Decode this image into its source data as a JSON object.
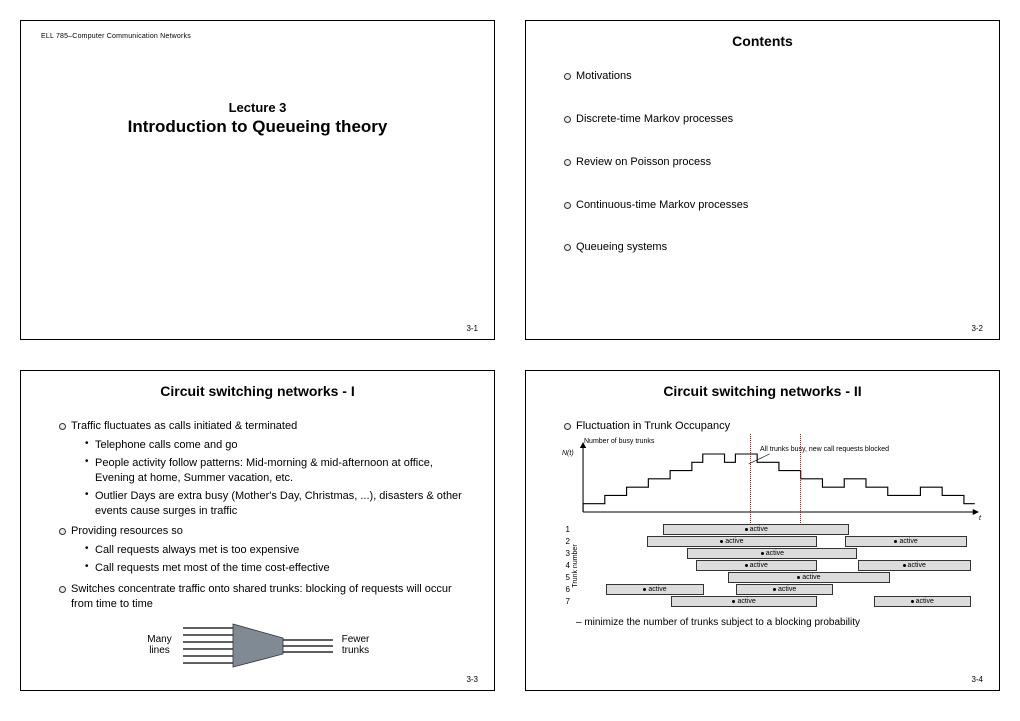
{
  "slide1": {
    "course": "ELL 785–Computer Communication Networks",
    "lecture": "Lecture 3",
    "title": "Introduction to Queueing theory",
    "pagenum": "3-1"
  },
  "slide2": {
    "title": "Contents",
    "items": [
      "Motivations",
      "Discrete-time Markov processes",
      "Review on Poisson process",
      "Continuous-time Markov processes",
      "Queueing systems"
    ],
    "pagenum": "3-2"
  },
  "slide3": {
    "title": "Circuit switching networks - I",
    "b1": "Traffic fluctuates as calls initiated & terminated",
    "s1a": "Telephone calls come and go",
    "s1b": "People activity follow patterns: Mid-morning & mid-afternoon at office, Evening at home, Summer vacation, etc.",
    "s1c": "Outlier Days are extra busy (Mother's Day, Christmas, ...), disasters & other events cause surges in traffic",
    "b2": "Providing resources so",
    "s2a": "Call requests always met is too expensive",
    "s2b": "Call requests met most of the time cost-effective",
    "b3": "Switches concentrate traffic onto shared trunks: blocking of requests will occur from time to time",
    "many": "Many lines",
    "fewer": "Fewer trunks",
    "pagenum": "3-3"
  },
  "slide4": {
    "title": "Circuit switching networks - II",
    "b1": "Fluctuation in Trunk Occupancy",
    "ylabel_busy": "Number of busy trunks",
    "nt": "N(t)",
    "block_note": "All trunks busy, new call requests blocked",
    "t_label": "t",
    "trunk_ylabel": "Trunk number",
    "chart_values": [
      1,
      1,
      2,
      2,
      3,
      3,
      4,
      4,
      5,
      5,
      6,
      7,
      7,
      6,
      7,
      7,
      6,
      6,
      5,
      5,
      4,
      4,
      3,
      3,
      4,
      4,
      3,
      3,
      2,
      2,
      2,
      3,
      3,
      2,
      2,
      1
    ],
    "trunks": [
      {
        "n": "1",
        "segs": [
          {
            "l": 22,
            "w": 46,
            "label": "active"
          }
        ]
      },
      {
        "n": "2",
        "segs": [
          {
            "l": 18,
            "w": 42,
            "label": "active"
          },
          {
            "l": 67,
            "w": 30,
            "label": "active"
          }
        ]
      },
      {
        "n": "3",
        "segs": [
          {
            "l": 28,
            "w": 42,
            "label": "active"
          }
        ]
      },
      {
        "n": "4",
        "segs": [
          {
            "l": 30,
            "w": 30,
            "label": "active"
          },
          {
            "l": 70,
            "w": 28,
            "label": "active"
          }
        ]
      },
      {
        "n": "5",
        "segs": [
          {
            "l": 38,
            "w": 40,
            "label": "active"
          }
        ]
      },
      {
        "n": "6",
        "segs": [
          {
            "l": 8,
            "w": 24,
            "label": "active"
          },
          {
            "l": 40,
            "w": 24,
            "label": "active"
          }
        ]
      },
      {
        "n": "7",
        "segs": [
          {
            "l": 24,
            "w": 36,
            "label": "active"
          },
          {
            "l": 74,
            "w": 24,
            "label": "active"
          }
        ]
      }
    ],
    "vline1_pct": 42,
    "vline2_pct": 54,
    "footnote": "– minimize the number of trunks subject to a blocking probability",
    "active_bg": "#dcdcdc",
    "pagenum": "3-4"
  }
}
